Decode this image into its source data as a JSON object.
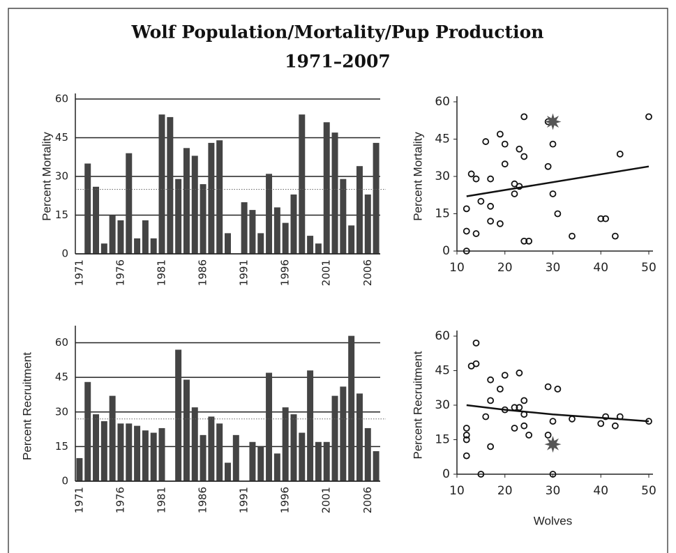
{
  "title": "Wolf Population/Mortality/Pup Production",
  "subtitle": "1971–2007",
  "chart_data": [
    {
      "type": "bar",
      "ylabel": "Percent Mortality",
      "categories": [
        "1971",
        null,
        null,
        null,
        null,
        "1976",
        null,
        null,
        null,
        null,
        "1981",
        null,
        null,
        null,
        null,
        "1986",
        null,
        null,
        null,
        null,
        "1991",
        null,
        null,
        null,
        null,
        "1996",
        null,
        null,
        null,
        null,
        "2001",
        null,
        null,
        null,
        null,
        "2006",
        null
      ],
      "values": [
        null,
        35,
        26,
        4,
        15,
        13,
        39,
        6,
        13,
        6,
        54,
        53,
        29,
        41,
        38,
        27,
        43,
        44,
        8,
        null,
        20,
        17,
        8,
        31,
        18,
        12,
        23,
        54,
        7,
        4,
        51,
        47,
        29,
        11,
        34,
        23,
        43
      ],
      "color": "#444444",
      "ylim": [
        0,
        60
      ],
      "yticks": [
        0,
        15,
        30,
        45,
        60
      ],
      "grid": true,
      "reference_line": 25
    },
    {
      "type": "bar",
      "ylabel": "Percent Recruitment",
      "categories": [
        "1971",
        null,
        null,
        null,
        null,
        "1976",
        null,
        null,
        null,
        null,
        "1981",
        null,
        null,
        null,
        null,
        "1986",
        null,
        null,
        null,
        null,
        "1991",
        null,
        null,
        null,
        null,
        "1996",
        null,
        null,
        null,
        null,
        "2001",
        null,
        null,
        null,
        null,
        "2006",
        null
      ],
      "values": [
        10,
        43,
        29,
        26,
        37,
        25,
        25,
        24,
        22,
        21,
        23,
        null,
        57,
        44,
        32,
        20,
        28,
        25,
        8,
        20,
        null,
        17,
        15,
        47,
        12,
        32,
        29,
        21,
        48,
        17,
        17,
        37,
        41,
        63,
        38,
        23,
        13
      ],
      "color": "#444444",
      "ylim": [
        0,
        65
      ],
      "yticks": [
        0,
        15,
        30,
        45,
        60
      ],
      "grid": true,
      "reference_line": 27
    },
    {
      "type": "scatter",
      "ylabel": "Percent Mortality",
      "x": [
        12,
        12,
        12,
        13,
        14,
        14,
        15,
        16,
        17,
        17,
        17,
        19,
        19,
        20,
        20,
        22,
        22,
        23,
        23,
        24,
        24,
        24,
        25,
        29,
        29,
        30,
        30,
        31,
        34,
        40,
        41,
        43,
        44,
        50
      ],
      "values": [
        0,
        8,
        17,
        31,
        29,
        7,
        20,
        44,
        29,
        18,
        12,
        47,
        11,
        43,
        35,
        27,
        23,
        41,
        26,
        54,
        38,
        4,
        4,
        34,
        52,
        43,
        23,
        15,
        6,
        13,
        13,
        6,
        39,
        54
      ],
      "color": "#111111",
      "highlight": {
        "x": 30,
        "y": 52,
        "color": "#555555"
      },
      "trend": {
        "x": [
          12,
          50
        ],
        "y": [
          22,
          34
        ]
      },
      "xlim": [
        10,
        50
      ],
      "xticks": [
        10,
        20,
        30,
        40,
        50
      ],
      "ylim": [
        0,
        60
      ],
      "yticks": [
        0,
        15,
        30,
        45,
        60
      ],
      "grid": false
    },
    {
      "type": "scatter",
      "ylabel": "Percent Recruitment",
      "xlabel": "Wolves",
      "x": [
        12,
        12,
        12,
        12,
        13,
        14,
        14,
        15,
        16,
        17,
        17,
        17,
        19,
        20,
        20,
        22,
        22,
        23,
        23,
        24,
        24,
        24,
        25,
        29,
        29,
        30,
        30,
        31,
        34,
        40,
        41,
        43,
        44,
        50
      ],
      "values": [
        20,
        17,
        15,
        8,
        47,
        57,
        48,
        0,
        25,
        32,
        12,
        41,
        37,
        43,
        28,
        20,
        29,
        29,
        44,
        21,
        32,
        26,
        17,
        38,
        17,
        23,
        0,
        37,
        24,
        22,
        25,
        21,
        25,
        23
      ],
      "color": "#111111",
      "highlight": {
        "x": 30,
        "y": 13,
        "color": "#555555"
      },
      "trend": {
        "x": [
          12,
          20,
          30,
          40,
          50
        ],
        "y": [
          30,
          28,
          26,
          24.5,
          23
        ]
      },
      "xlim": [
        10,
        50
      ],
      "xticks": [
        10,
        20,
        30,
        40,
        50
      ],
      "ylim": [
        0,
        60
      ],
      "yticks": [
        0,
        15,
        30,
        45,
        60
      ],
      "grid": false
    }
  ]
}
